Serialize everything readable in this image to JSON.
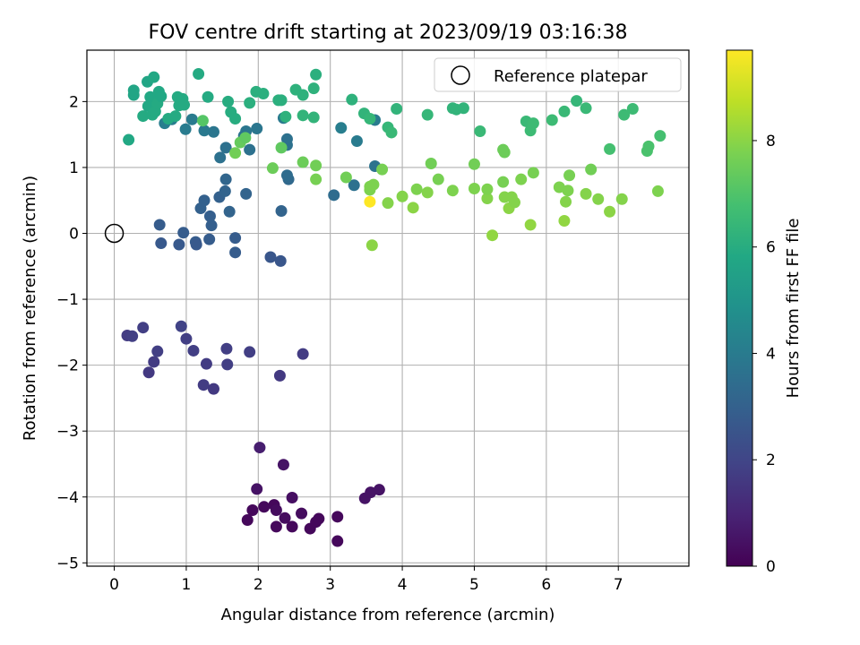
{
  "chart_data": {
    "type": "scatter",
    "title": "FOV centre drift starting at 2023/09/19 03:16:38",
    "xlabel": "Angular distance from reference (arcmin)",
    "ylabel": "Rotation from reference (arcmin)",
    "xlim": [
      -0.38,
      7.98
    ],
    "ylim": [
      -5.05,
      2.78
    ],
    "xticks": [
      "0",
      "1",
      "2",
      "3",
      "4",
      "5",
      "6",
      "7"
    ],
    "yticks": [
      "−5",
      "−4",
      "−3",
      "−2",
      "−1",
      "0",
      "1",
      "2"
    ],
    "grid": true,
    "legend": {
      "placement": "top-right",
      "entries": [
        "Reference platepar"
      ]
    },
    "reference_point": {
      "x": 0,
      "y": 0
    },
    "colorbar": {
      "label": "Hours from first FF file",
      "range": [
        0,
        9.7
      ],
      "ticks": [
        "0",
        "2",
        "4",
        "6",
        "8"
      ],
      "colormap": "viridis"
    },
    "points": [
      {
        "x": 1.92,
        "y": -4.2,
        "h": 0.2
      },
      {
        "x": 2.08,
        "y": -4.15,
        "h": 0.2
      },
      {
        "x": 2.22,
        "y": -4.12,
        "h": 0.2
      },
      {
        "x": 2.25,
        "y": -4.2,
        "h": 0.3
      },
      {
        "x": 2.37,
        "y": -4.32,
        "h": 0.3
      },
      {
        "x": 1.85,
        "y": -4.35,
        "h": 0.2
      },
      {
        "x": 2.25,
        "y": -4.45,
        "h": 0.2
      },
      {
        "x": 2.47,
        "y": -4.45,
        "h": 0.2
      },
      {
        "x": 2.6,
        "y": -4.25,
        "h": 0.3
      },
      {
        "x": 2.72,
        "y": -4.48,
        "h": 0.2
      },
      {
        "x": 2.8,
        "y": -4.38,
        "h": 0.2
      },
      {
        "x": 2.84,
        "y": -4.33,
        "h": 0.2
      },
      {
        "x": 3.1,
        "y": -4.3,
        "h": 0.2
      },
      {
        "x": 3.1,
        "y": -4.67,
        "h": 0.2
      },
      {
        "x": 3.48,
        "y": -4.02,
        "h": 0.5
      },
      {
        "x": 3.56,
        "y": -3.93,
        "h": 0.5
      },
      {
        "x": 3.68,
        "y": -3.89,
        "h": 0.5
      },
      {
        "x": 1.98,
        "y": -3.88,
        "h": 0.5
      },
      {
        "x": 2.47,
        "y": -4.01,
        "h": 0.4
      },
      {
        "x": 2.35,
        "y": -3.51,
        "h": 0.5
      },
      {
        "x": 2.02,
        "y": -3.25,
        "h": 0.8
      },
      {
        "x": 2.3,
        "y": -2.16,
        "h": 1.6
      },
      {
        "x": 2.62,
        "y": -1.83,
        "h": 1.7
      },
      {
        "x": 1.88,
        "y": -1.8,
        "h": 1.8
      },
      {
        "x": 1.56,
        "y": -1.75,
        "h": 1.8
      },
      {
        "x": 1.57,
        "y": -1.99,
        "h": 1.8
      },
      {
        "x": 1.28,
        "y": -1.98,
        "h": 1.7
      },
      {
        "x": 1.24,
        "y": -2.3,
        "h": 1.7
      },
      {
        "x": 1.38,
        "y": -2.36,
        "h": 1.6
      },
      {
        "x": 0.18,
        "y": -1.55,
        "h": 1.7
      },
      {
        "x": 0.25,
        "y": -1.56,
        "h": 1.8
      },
      {
        "x": 0.4,
        "y": -1.43,
        "h": 1.8
      },
      {
        "x": 0.6,
        "y": -1.79,
        "h": 1.8
      },
      {
        "x": 0.55,
        "y": -1.95,
        "h": 1.7
      },
      {
        "x": 0.48,
        "y": -2.11,
        "h": 1.6
      },
      {
        "x": 0.93,
        "y": -1.41,
        "h": 1.9
      },
      {
        "x": 1.0,
        "y": -1.6,
        "h": 1.8
      },
      {
        "x": 1.1,
        "y": -1.78,
        "h": 1.8
      },
      {
        "x": 0.63,
        "y": 0.13,
        "h": 2.8
      },
      {
        "x": 0.65,
        "y": -0.15,
        "h": 2.7
      },
      {
        "x": 0.9,
        "y": -0.17,
        "h": 2.7
      },
      {
        "x": 0.96,
        "y": 0.01,
        "h": 2.8
      },
      {
        "x": 1.13,
        "y": -0.13,
        "h": 2.8
      },
      {
        "x": 1.14,
        "y": -0.17,
        "h": 2.7
      },
      {
        "x": 1.32,
        "y": -0.09,
        "h": 2.8
      },
      {
        "x": 1.35,
        "y": 0.12,
        "h": 2.9
      },
      {
        "x": 1.33,
        "y": 0.26,
        "h": 2.9
      },
      {
        "x": 1.2,
        "y": 0.38,
        "h": 3.0
      },
      {
        "x": 1.25,
        "y": 0.5,
        "h": 3.0
      },
      {
        "x": 1.46,
        "y": 0.55,
        "h": 3.0
      },
      {
        "x": 1.54,
        "y": 0.64,
        "h": 3.1
      },
      {
        "x": 1.55,
        "y": 0.82,
        "h": 3.2
      },
      {
        "x": 1.6,
        "y": 0.33,
        "h": 3.1
      },
      {
        "x": 1.68,
        "y": -0.07,
        "h": 2.8
      },
      {
        "x": 1.68,
        "y": -0.29,
        "h": 2.8
      },
      {
        "x": 1.83,
        "y": 0.6,
        "h": 3.1
      },
      {
        "x": 2.17,
        "y": -0.36,
        "h": 2.6
      },
      {
        "x": 2.31,
        "y": -0.42,
        "h": 2.6
      },
      {
        "x": 2.32,
        "y": 0.34,
        "h": 3.1
      },
      {
        "x": 2.42,
        "y": 0.82,
        "h": 3.3
      },
      {
        "x": 2.4,
        "y": 0.88,
        "h": 3.4
      },
      {
        "x": 2.4,
        "y": 1.34,
        "h": 3.6
      },
      {
        "x": 2.4,
        "y": 1.43,
        "h": 3.6
      },
      {
        "x": 2.35,
        "y": 1.75,
        "h": 3.9
      },
      {
        "x": 1.47,
        "y": 1.15,
        "h": 3.6
      },
      {
        "x": 1.55,
        "y": 1.3,
        "h": 3.6
      },
      {
        "x": 1.88,
        "y": 1.27,
        "h": 3.6
      },
      {
        "x": 1.83,
        "y": 1.55,
        "h": 3.8
      },
      {
        "x": 1.8,
        "y": 1.48,
        "h": 3.7
      },
      {
        "x": 1.98,
        "y": 1.59,
        "h": 3.8
      },
      {
        "x": 1.38,
        "y": 1.54,
        "h": 3.8
      },
      {
        "x": 1.25,
        "y": 1.56,
        "h": 3.9
      },
      {
        "x": 1.08,
        "y": 1.73,
        "h": 4.0
      },
      {
        "x": 0.99,
        "y": 1.58,
        "h": 4.0
      },
      {
        "x": 0.7,
        "y": 1.67,
        "h": 4.1
      },
      {
        "x": 0.8,
        "y": 1.73,
        "h": 4.1
      },
      {
        "x": 3.05,
        "y": 0.58,
        "h": 3.4
      },
      {
        "x": 3.33,
        "y": 0.73,
        "h": 3.6
      },
      {
        "x": 3.62,
        "y": 1.02,
        "h": 3.7
      },
      {
        "x": 3.62,
        "y": 1.72,
        "h": 4.0
      },
      {
        "x": 3.37,
        "y": 1.4,
        "h": 4.0
      },
      {
        "x": 3.15,
        "y": 1.6,
        "h": 4.1
      },
      {
        "x": 0.2,
        "y": 1.42,
        "h": 5.8
      },
      {
        "x": 0.27,
        "y": 2.1,
        "h": 5.7
      },
      {
        "x": 0.27,
        "y": 2.17,
        "h": 5.7
      },
      {
        "x": 0.4,
        "y": 1.78,
        "h": 5.9
      },
      {
        "x": 0.47,
        "y": 1.93,
        "h": 5.8
      },
      {
        "x": 0.46,
        "y": 2.3,
        "h": 5.7
      },
      {
        "x": 0.5,
        "y": 2.07,
        "h": 5.8
      },
      {
        "x": 0.53,
        "y": 1.8,
        "h": 5.9
      },
      {
        "x": 0.55,
        "y": 2.37,
        "h": 5.8
      },
      {
        "x": 0.57,
        "y": 1.85,
        "h": 5.9
      },
      {
        "x": 0.6,
        "y": 1.97,
        "h": 5.9
      },
      {
        "x": 0.62,
        "y": 2.15,
        "h": 5.8
      },
      {
        "x": 0.65,
        "y": 2.08,
        "h": 5.8
      },
      {
        "x": 0.75,
        "y": 1.74,
        "h": 5.9
      },
      {
        "x": 0.85,
        "y": 1.78,
        "h": 5.9
      },
      {
        "x": 0.88,
        "y": 2.07,
        "h": 5.9
      },
      {
        "x": 0.9,
        "y": 1.94,
        "h": 5.9
      },
      {
        "x": 0.95,
        "y": 2.04,
        "h": 5.9
      },
      {
        "x": 0.97,
        "y": 1.95,
        "h": 5.9
      },
      {
        "x": 1.17,
        "y": 2.42,
        "h": 5.9
      },
      {
        "x": 1.3,
        "y": 2.07,
        "h": 5.9
      },
      {
        "x": 1.58,
        "y": 2.0,
        "h": 6.0
      },
      {
        "x": 1.62,
        "y": 1.84,
        "h": 6.0
      },
      {
        "x": 1.68,
        "y": 1.74,
        "h": 6.0
      },
      {
        "x": 1.88,
        "y": 1.98,
        "h": 6.1
      },
      {
        "x": 1.97,
        "y": 2.15,
        "h": 6.1
      },
      {
        "x": 2.07,
        "y": 2.12,
        "h": 6.1
      },
      {
        "x": 2.28,
        "y": 2.02,
        "h": 6.1
      },
      {
        "x": 2.32,
        "y": 2.02,
        "h": 6.1
      },
      {
        "x": 2.38,
        "y": 1.77,
        "h": 6.2
      },
      {
        "x": 2.52,
        "y": 2.18,
        "h": 6.2
      },
      {
        "x": 2.62,
        "y": 2.1,
        "h": 6.2
      },
      {
        "x": 2.62,
        "y": 1.79,
        "h": 6.3
      },
      {
        "x": 2.77,
        "y": 1.76,
        "h": 6.3
      },
      {
        "x": 2.77,
        "y": 2.2,
        "h": 6.2
      },
      {
        "x": 2.8,
        "y": 2.41,
        "h": 6.1
      },
      {
        "x": 3.3,
        "y": 2.03,
        "h": 6.2
      },
      {
        "x": 3.47,
        "y": 1.82,
        "h": 6.3
      },
      {
        "x": 3.55,
        "y": 1.74,
        "h": 6.4
      },
      {
        "x": 3.8,
        "y": 1.61,
        "h": 6.4
      },
      {
        "x": 3.85,
        "y": 1.53,
        "h": 6.5
      },
      {
        "x": 3.92,
        "y": 1.89,
        "h": 6.3
      },
      {
        "x": 4.35,
        "y": 1.8,
        "h": 6.4
      },
      {
        "x": 4.7,
        "y": 1.9,
        "h": 6.3
      },
      {
        "x": 4.75,
        "y": 1.88,
        "h": 6.3
      },
      {
        "x": 4.85,
        "y": 1.9,
        "h": 6.3
      },
      {
        "x": 5.08,
        "y": 1.55,
        "h": 6.5
      },
      {
        "x": 5.72,
        "y": 1.7,
        "h": 6.5
      },
      {
        "x": 5.78,
        "y": 1.56,
        "h": 6.6
      },
      {
        "x": 5.82,
        "y": 1.67,
        "h": 6.6
      },
      {
        "x": 6.08,
        "y": 1.72,
        "h": 6.6
      },
      {
        "x": 6.25,
        "y": 1.85,
        "h": 6.5
      },
      {
        "x": 6.42,
        "y": 2.01,
        "h": 6.4
      },
      {
        "x": 6.55,
        "y": 1.9,
        "h": 6.5
      },
      {
        "x": 6.88,
        "y": 1.28,
        "h": 6.8
      },
      {
        "x": 7.08,
        "y": 1.8,
        "h": 6.6
      },
      {
        "x": 7.2,
        "y": 1.89,
        "h": 6.6
      },
      {
        "x": 7.4,
        "y": 1.25,
        "h": 6.9
      },
      {
        "x": 7.42,
        "y": 1.32,
        "h": 6.9
      },
      {
        "x": 7.58,
        "y": 1.48,
        "h": 6.8
      },
      {
        "x": 1.23,
        "y": 1.71,
        "h": 7.1
      },
      {
        "x": 1.68,
        "y": 1.22,
        "h": 7.6
      },
      {
        "x": 1.75,
        "y": 1.38,
        "h": 7.4
      },
      {
        "x": 1.82,
        "y": 1.45,
        "h": 7.3
      },
      {
        "x": 2.2,
        "y": 0.99,
        "h": 7.5
      },
      {
        "x": 2.32,
        "y": 1.3,
        "h": 7.3
      },
      {
        "x": 2.62,
        "y": 1.08,
        "h": 7.5
      },
      {
        "x": 2.8,
        "y": 1.03,
        "h": 7.6
      },
      {
        "x": 2.8,
        "y": 0.82,
        "h": 7.7
      },
      {
        "x": 3.22,
        "y": 0.85,
        "h": 7.6
      },
      {
        "x": 3.55,
        "y": 0.66,
        "h": 7.8
      },
      {
        "x": 3.55,
        "y": 0.71,
        "h": 7.8
      },
      {
        "x": 3.6,
        "y": 0.74,
        "h": 7.8
      },
      {
        "x": 3.58,
        "y": -0.18,
        "h": 8.0
      },
      {
        "x": 3.72,
        "y": 0.97,
        "h": 7.7
      },
      {
        "x": 3.8,
        "y": 0.46,
        "h": 7.9
      },
      {
        "x": 4.0,
        "y": 0.56,
        "h": 7.9
      },
      {
        "x": 4.15,
        "y": 0.39,
        "h": 8.0
      },
      {
        "x": 4.2,
        "y": 0.67,
        "h": 7.8
      },
      {
        "x": 4.35,
        "y": 0.62,
        "h": 7.9
      },
      {
        "x": 4.4,
        "y": 1.06,
        "h": 7.6
      },
      {
        "x": 4.5,
        "y": 0.82,
        "h": 7.7
      },
      {
        "x": 4.7,
        "y": 0.65,
        "h": 7.8
      },
      {
        "x": 5.0,
        "y": 1.05,
        "h": 7.6
      },
      {
        "x": 5.0,
        "y": 0.68,
        "h": 7.8
      },
      {
        "x": 5.18,
        "y": 0.53,
        "h": 7.9
      },
      {
        "x": 5.18,
        "y": 0.67,
        "h": 7.8
      },
      {
        "x": 5.25,
        "y": -0.03,
        "h": 8.1
      },
      {
        "x": 5.4,
        "y": 1.27,
        "h": 7.5
      },
      {
        "x": 5.42,
        "y": 1.23,
        "h": 7.5
      },
      {
        "x": 5.4,
        "y": 0.78,
        "h": 7.7
      },
      {
        "x": 5.42,
        "y": 0.55,
        "h": 7.9
      },
      {
        "x": 5.48,
        "y": 0.38,
        "h": 8.0
      },
      {
        "x": 5.52,
        "y": 0.55,
        "h": 7.9
      },
      {
        "x": 5.56,
        "y": 0.47,
        "h": 7.9
      },
      {
        "x": 5.65,
        "y": 0.82,
        "h": 7.8
      },
      {
        "x": 5.78,
        "y": 0.13,
        "h": 8.1
      },
      {
        "x": 5.82,
        "y": 0.92,
        "h": 7.7
      },
      {
        "x": 6.18,
        "y": 0.7,
        "h": 7.8
      },
      {
        "x": 6.25,
        "y": 0.19,
        "h": 8.1
      },
      {
        "x": 6.27,
        "y": 0.48,
        "h": 7.9
      },
      {
        "x": 6.3,
        "y": 0.65,
        "h": 7.8
      },
      {
        "x": 6.32,
        "y": 0.88,
        "h": 7.7
      },
      {
        "x": 6.55,
        "y": 0.6,
        "h": 7.9
      },
      {
        "x": 6.62,
        "y": 0.97,
        "h": 7.6
      },
      {
        "x": 6.72,
        "y": 0.52,
        "h": 7.9
      },
      {
        "x": 6.88,
        "y": 0.33,
        "h": 8.0
      },
      {
        "x": 7.05,
        "y": 0.52,
        "h": 7.9
      },
      {
        "x": 7.55,
        "y": 0.64,
        "h": 7.8
      },
      {
        "x": 3.55,
        "y": 0.48,
        "h": 9.7
      }
    ]
  }
}
